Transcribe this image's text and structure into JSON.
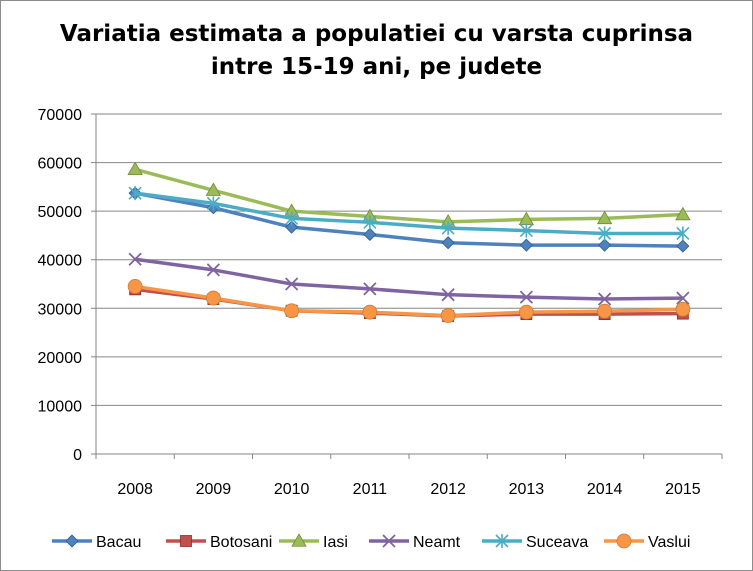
{
  "chart_data": {
    "type": "line",
    "title_lines": [
      "Variatia estimata a populatiei cu varsta cuprinsa",
      "intre 15-19 ani, pe judete"
    ],
    "xlabel": "",
    "ylabel": "",
    "categories": [
      "2008",
      "2009",
      "2010",
      "2011",
      "2012",
      "2013",
      "2014",
      "2015"
    ],
    "ylim": [
      0,
      70000
    ],
    "yticks": [
      0,
      10000,
      20000,
      30000,
      40000,
      50000,
      60000,
      70000
    ],
    "grid": "horizontal",
    "legend_position": "bottom",
    "series": [
      {
        "name": "Bacau",
        "color": "#4f81bd",
        "marker": "diamond",
        "values": [
          53700,
          50700,
          46700,
          45200,
          43500,
          43000,
          43000,
          42800
        ]
      },
      {
        "name": "Botosani",
        "color": "#c0504d",
        "marker": "square",
        "values": [
          33900,
          31900,
          29500,
          29000,
          28400,
          28800,
          28800,
          28900
        ]
      },
      {
        "name": "Iasi",
        "color": "#9bbb59",
        "marker": "triangle",
        "values": [
          58600,
          54300,
          50000,
          48900,
          47800,
          48300,
          48500,
          49300
        ]
      },
      {
        "name": "Neamt",
        "color": "#8064a2",
        "marker": "x",
        "values": [
          40100,
          37900,
          35000,
          34000,
          32800,
          32300,
          31900,
          32100
        ]
      },
      {
        "name": "Suceava",
        "color": "#4bacc6",
        "marker": "star",
        "values": [
          53700,
          51600,
          48500,
          47700,
          46500,
          46000,
          45400,
          45400
        ]
      },
      {
        "name": "Vaslui",
        "color": "#f79646",
        "marker": "circle",
        "values": [
          34500,
          32100,
          29500,
          29200,
          28500,
          29200,
          29400,
          29800
        ]
      }
    ]
  }
}
